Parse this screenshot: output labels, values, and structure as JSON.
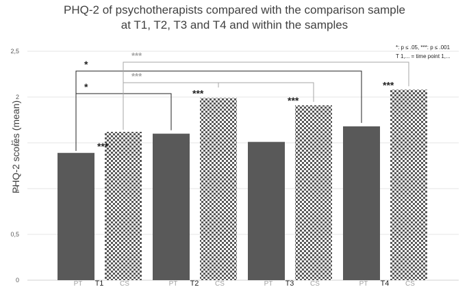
{
  "title_lines": [
    "PHQ-2 of psychotherapists compared with the comparison sample",
    "at T1, T2, T3 and T4 and within the samples"
  ],
  "legend_note": [
    "*: p ≤ .05, ***: p ≤ .001",
    "T 1,... =  time point 1,..."
  ],
  "colors": {
    "pt": "#595959",
    "cs_dark": "#595959",
    "cs_light": "#ffffff",
    "bracket_black": "#222222",
    "bracket_gray": "#a6a6a6",
    "sub_pt": "#a0a0a0",
    "sub_cs": "#a0a0a0"
  },
  "chart_data": {
    "type": "bar",
    "title": "PHQ-2 of psychotherapists compared with the comparison sample at T1, T2, T3 and T4 and within the samples",
    "ylabel": "PHQ-2 scores (mean)",
    "xlabel": "",
    "ylim": [
      0,
      2.5
    ],
    "yticks": [
      "0",
      "0,5",
      "1",
      "1,5",
      "2",
      "2,5"
    ],
    "ytick_values": [
      0,
      0.5,
      1,
      1.5,
      2,
      2.5
    ],
    "grid": true,
    "groups": [
      "T1",
      "T2",
      "T3",
      "T4"
    ],
    "subcategories": [
      "PT",
      "CS"
    ],
    "series": [
      {
        "name": "PT",
        "values": [
          1.39,
          1.6,
          1.51,
          1.68
        ],
        "pattern": "solid"
      },
      {
        "name": "CS",
        "values": [
          1.62,
          1.99,
          1.91,
          2.08
        ],
        "pattern": "checker"
      }
    ],
    "pair_annotations": [
      "***",
      "***",
      "***",
      "***"
    ],
    "brackets": [
      {
        "from": "PT T1",
        "to": "PT T4",
        "label": "*",
        "color": "black"
      },
      {
        "from": "PT T1",
        "to": "PT T2",
        "label": "*",
        "color": "black"
      },
      {
        "from": "CS T1",
        "to": "CS T4",
        "label": "***",
        "color": "gray"
      },
      {
        "from": "CS T1",
        "to": "CS T3",
        "label": "***",
        "color": "gray"
      }
    ]
  }
}
